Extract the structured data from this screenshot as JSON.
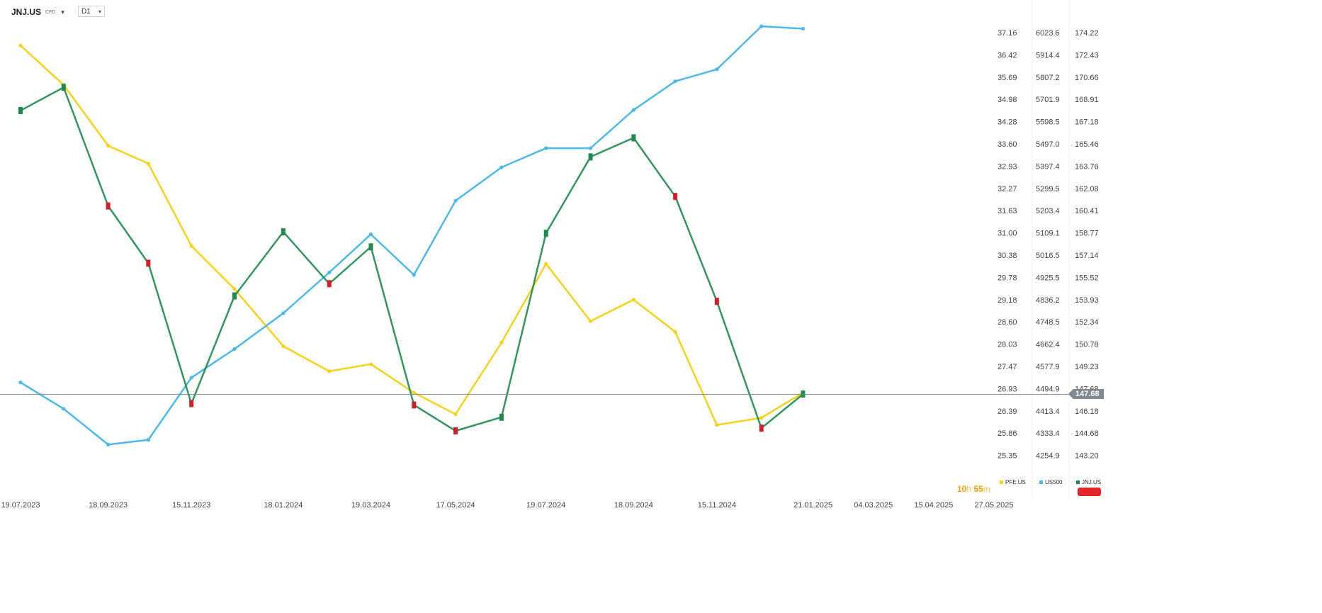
{
  "header": {
    "symbol": "JNJ.US",
    "instrument_type": "CFD",
    "timeframe": "D1"
  },
  "countdown": {
    "hours": "10",
    "h_unit": "h",
    "minutes": "55",
    "m_unit": "m"
  },
  "current_price": "147.68",
  "colors": {
    "pfe": "#f7d21c",
    "us500": "#4cb9ea",
    "jnj_up": "#1f8a4c",
    "jnj_down": "#d0202c",
    "price_line": "#7d8a92",
    "red_button": "#e02828"
  },
  "icons": {
    "dropdown": "chevron-down-icon"
  },
  "chart_data": {
    "type": "line",
    "title": "",
    "x_ticks": [
      "19.07.2023",
      "18.09.2023",
      "15.11.2023",
      "18.01.2024",
      "19.03.2024",
      "17.05.2024",
      "19.07.2024",
      "18.09.2024",
      "15.11.2024",
      "21.01.2025",
      "04.03.2025",
      "15.04.2025",
      "27.05.2025"
    ],
    "axes": {
      "pfe_scale": [
        "37.16",
        "36.42",
        "35.69",
        "34.98",
        "34.28",
        "33.60",
        "32.93",
        "32.27",
        "31.63",
        "31.00",
        "30.38",
        "29.78",
        "29.18",
        "28.60",
        "28.03",
        "27.47",
        "26.93",
        "26.39",
        "25.86",
        "25.35"
      ],
      "us500_scale": [
        "6023.6",
        "5914.4",
        "5807.2",
        "5701.9",
        "5598.5",
        "5497.0",
        "5397.4",
        "5299.5",
        "5203.4",
        "5109.1",
        "5016.5",
        "4925.5",
        "4836.2",
        "4748.5",
        "4662.4",
        "4577.9",
        "4494.9",
        "4413.4",
        "4333.4",
        "4254.9"
      ],
      "jnj_scale": [
        "174.22",
        "172.43",
        "170.66",
        "168.91",
        "167.18",
        "165.46",
        "163.76",
        "162.08",
        "160.41",
        "158.77",
        "157.14",
        "155.52",
        "153.93",
        "152.34",
        "150.78",
        "149.23",
        "147.68",
        "146.18",
        "144.68",
        "143.20"
      ]
    },
    "series": [
      {
        "name": "PFE.US",
        "color": "#f7d21c",
        "x": [
          "19.07.2023",
          "18.08.2023",
          "18.09.2023",
          "16.10.2023",
          "15.11.2023",
          "15.12.2023",
          "18.01.2024",
          "19.02.2024",
          "19.03.2024",
          "18.04.2024",
          "17.05.2024",
          "18.06.2024",
          "19.07.2024",
          "19.08.2024",
          "18.09.2024",
          "17.10.2024",
          "15.11.2024",
          "16.12.2024",
          "14.01.2025"
        ],
        "values": [
          36.8,
          35.7,
          34.0,
          33.5,
          31.2,
          30.0,
          28.4,
          27.7,
          27.9,
          27.1,
          26.5,
          28.5,
          30.7,
          29.1,
          29.7,
          28.8,
          26.2,
          26.4,
          27.1
        ]
      },
      {
        "name": "US500",
        "color": "#4cb9ea",
        "x": [
          "19.07.2023",
          "18.08.2023",
          "18.09.2023",
          "16.10.2023",
          "15.11.2023",
          "15.12.2023",
          "18.01.2024",
          "19.02.2024",
          "19.03.2024",
          "18.04.2024",
          "17.05.2024",
          "18.06.2024",
          "19.07.2024",
          "19.08.2024",
          "18.09.2024",
          "17.10.2024",
          "15.11.2024",
          "16.12.2024",
          "14.01.2025"
        ],
        "values": [
          4560,
          4450,
          4300,
          4320,
          4580,
          4700,
          4850,
          5020,
          5180,
          5010,
          5320,
          5460,
          5540,
          5540,
          5700,
          5820,
          5870,
          6050,
          6040
        ]
      },
      {
        "name": "JNJ.US",
        "color": "#1f8a4c",
        "x": [
          "19.07.2023",
          "18.08.2023",
          "18.09.2023",
          "16.10.2023",
          "15.11.2023",
          "15.12.2023",
          "18.01.2024",
          "19.02.2024",
          "19.03.2024",
          "18.04.2024",
          "17.05.2024",
          "18.06.2024",
          "19.07.2024",
          "19.08.2024",
          "18.09.2024",
          "17.10.2024",
          "15.11.2024",
          "16.12.2024",
          "14.01.2025"
        ],
        "values": [
          168.5,
          170.2,
          161.5,
          157.3,
          147.0,
          154.9,
          159.6,
          155.8,
          158.5,
          146.9,
          145.0,
          146.0,
          159.5,
          165.1,
          166.5,
          162.2,
          154.5,
          145.2,
          147.7
        ]
      }
    ],
    "grid": false,
    "legend_position": "bottom-right"
  }
}
